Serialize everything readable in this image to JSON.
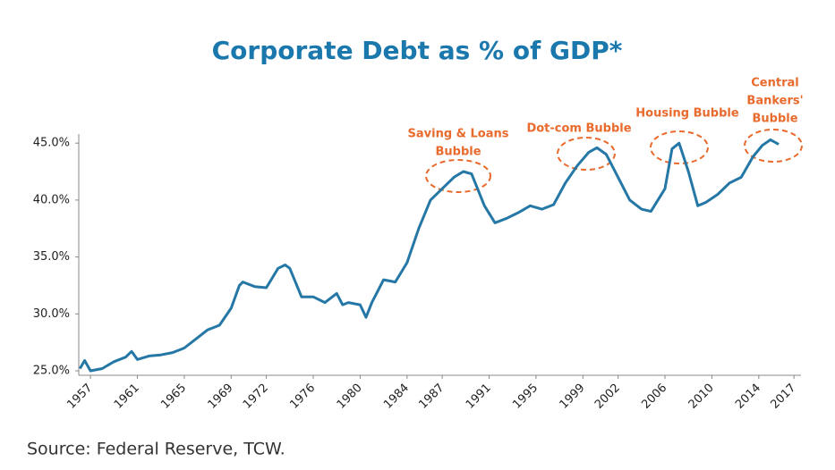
{
  "chart_data": {
    "type": "line",
    "title": "Corporate Debt as % of GDP*",
    "source": "Source: Federal Reserve, TCW.",
    "x": [
      1956.1,
      1956.5,
      1957,
      1958,
      1959,
      1960,
      1960.5,
      1961,
      1962,
      1963,
      1964,
      1965,
      1966,
      1967,
      1968,
      1969,
      1969.7,
      1970,
      1971,
      1972,
      1973,
      1973.6,
      1974,
      1975,
      1976,
      1977,
      1978,
      1978.5,
      1979,
      1980,
      1980.5,
      1981,
      1982,
      1983,
      1984,
      1985,
      1986,
      1987,
      1988,
      1988.8,
      1989.5,
      1990.6,
      1991.5,
      1992.5,
      1993.5,
      1994.5,
      1995.5,
      1996.5,
      1997.5,
      1998.5,
      1999.5,
      2000.2,
      2001,
      2002,
      2003,
      2004,
      2004.8,
      2006,
      2006.6,
      2007.2,
      2008,
      2008.8,
      2009.5,
      2010.5,
      2011.5,
      2012.5,
      2013.5,
      2014.3,
      2015,
      2015.7
    ],
    "values": [
      25.2,
      25.9,
      25.0,
      25.2,
      25.8,
      26.2,
      26.7,
      26.0,
      26.3,
      26.4,
      26.6,
      27.0,
      27.8,
      28.6,
      29.0,
      30.5,
      32.5,
      32.8,
      32.4,
      32.3,
      34.0,
      34.3,
      34.0,
      31.5,
      31.5,
      31.0,
      31.8,
      30.8,
      31.0,
      30.8,
      29.7,
      31.0,
      33.0,
      32.8,
      34.5,
      37.5,
      40.0,
      41.0,
      42.0,
      42.5,
      42.3,
      39.5,
      38.0,
      38.4,
      38.9,
      39.5,
      39.2,
      39.6,
      41.5,
      43.0,
      44.2,
      44.6,
      44.0,
      42.0,
      40.0,
      39.2,
      39.0,
      41.0,
      44.5,
      45.0,
      42.5,
      39.5,
      39.8,
      40.5,
      41.5,
      42.0,
      43.8,
      44.8,
      45.3,
      44.9
    ],
    "color": "#2577a6",
    "xlim": [
      1956,
      2017.6
    ],
    "xticks": [
      1957,
      1961,
      1965,
      1969,
      1972,
      1976,
      1980,
      1984,
      1987,
      1991,
      1995,
      1999,
      2002,
      2006,
      2010,
      2014,
      2017
    ],
    "ylim": [
      25,
      45.8
    ],
    "yticks": [
      {
        "value": 25,
        "label": "25.0%"
      },
      {
        "value": 30,
        "label": "30.0%"
      },
      {
        "value": 35,
        "label": "35.0%"
      },
      {
        "value": 40,
        "label": "40.0%"
      },
      {
        "value": 45,
        "label": "45.0%"
      }
    ],
    "annotations": [
      "Saving  & Loans",
      "Bubble",
      "Dot-com Bubble",
      "Housing Bubble",
      "Central",
      "Bankers'",
      "Bubble"
    ]
  }
}
